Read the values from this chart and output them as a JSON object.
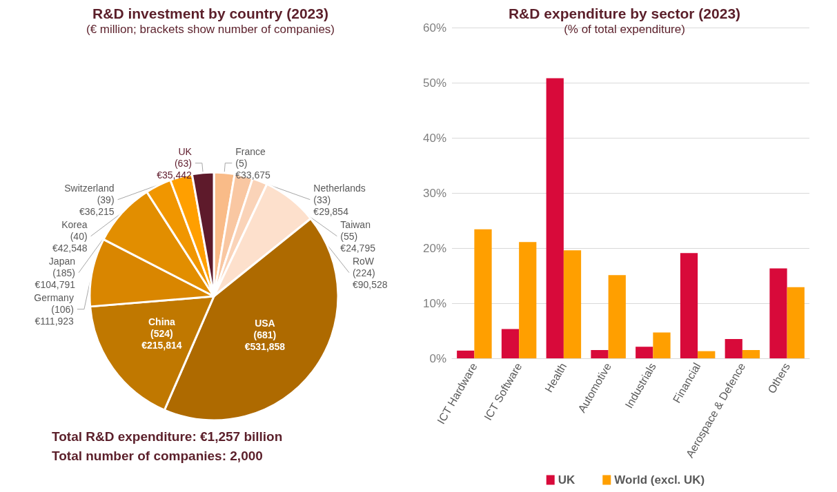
{
  "chart_data": [
    {
      "type": "pie",
      "title": "R&D investment by country (2023)",
      "subtitle": "(€ million; brackets show number of companies)",
      "categories": [
        "France",
        "Netherlands",
        "Taiwan",
        "RoW",
        "USA",
        "China",
        "Germany",
        "Japan",
        "Korea",
        "Switzerland",
        "UK"
      ],
      "values": [
        33675,
        29854,
        24795,
        90528,
        531858,
        215814,
        111923,
        104791,
        42548,
        36215,
        35442
      ],
      "value_labels": [
        "(5)\n€33,675",
        "(33)\n€29,854",
        "(55)\n€24,795",
        "(224)\n€90,528",
        "(681)\n€531,858",
        "(524)\n€215,814",
        "(106)\n€111,923",
        "(185)\n€104,791",
        "(40)\n€42,548",
        "(39)\n€36,215",
        "(63)\n€35,442"
      ],
      "colors": [
        "#f9bb88",
        "#f9c7a2",
        "#fad3b8",
        "#fde0cc",
        "#ae6a00",
        "#c07800",
        "#d98600",
        "#e28e00",
        "#f09600",
        "#ff9f00",
        "#5e1a2b"
      ],
      "annotations": [
        "Total R&D expenditure: €1,257 billion",
        "Total number of companies: 2,000"
      ],
      "legend": false
    },
    {
      "type": "bar",
      "title": "R&D expenditure by sector (2023)",
      "subtitle": "(% of total expenditure)",
      "categories": [
        "ICT Hardware",
        "ICT Software",
        "Health",
        "Automotive",
        "Industrials",
        "Financial",
        "Aerospace & Defence",
        "Others"
      ],
      "series": [
        {
          "name": "UK",
          "color": "#d80a3a",
          "values": [
            1.4,
            5.3,
            50.8,
            1.5,
            2.1,
            19.1,
            3.5,
            16.3
          ]
        },
        {
          "name": "World (excl. UK)",
          "color": "#ff9f00",
          "values": [
            23.4,
            21.1,
            19.6,
            15.1,
            4.7,
            1.3,
            1.5,
            12.9
          ]
        }
      ],
      "ylim": [
        0,
        60
      ],
      "yticks": [
        {
          "value": 0,
          "label": "0%"
        },
        {
          "value": 10,
          "label": "10%"
        },
        {
          "value": 20,
          "label": "20%"
        },
        {
          "value": 30,
          "label": "30%"
        },
        {
          "value": 40,
          "label": "40%"
        },
        {
          "value": 50,
          "label": "50%"
        },
        {
          "value": 60,
          "label": "60%"
        }
      ],
      "grid": "y",
      "legend": "bottom"
    }
  ]
}
